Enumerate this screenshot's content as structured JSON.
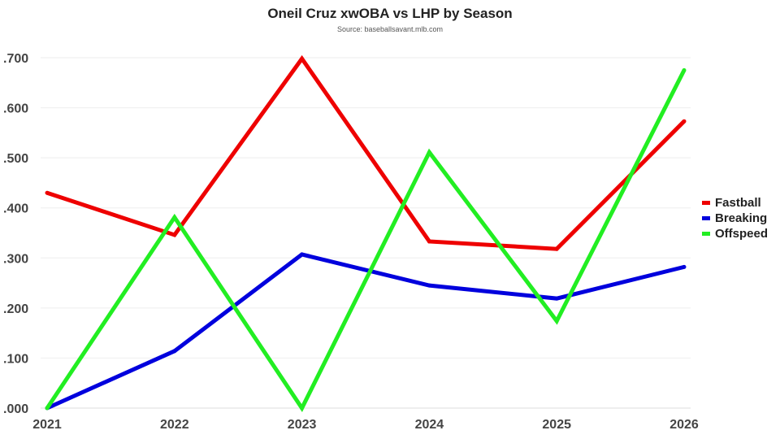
{
  "chart_data": {
    "type": "line",
    "title": "Oneil Cruz xwOBA vs LHP by Season",
    "subtitle": "Source: baseballsavant.mlb.com",
    "x": [
      "2021",
      "2022",
      "2023",
      "2024",
      "2025",
      "2026"
    ],
    "ylim": [
      0,
      0.7
    ],
    "yticks": [
      ".000",
      ".100",
      ".200",
      ".300",
      ".400",
      ".500",
      ".600",
      ".700"
    ],
    "grid": true,
    "legend_position": "right",
    "series": [
      {
        "name": "Fastball",
        "color": "#ee0000",
        "values": [
          0.43,
          0.346,
          0.698,
          0.333,
          0.318,
          0.573
        ]
      },
      {
        "name": "Breaking",
        "color": "#0000dd",
        "values": [
          0.0,
          0.114,
          0.307,
          0.245,
          0.219,
          0.282
        ]
      },
      {
        "name": "Offspeed",
        "color": "#22ee22",
        "values": [
          0.0,
          0.381,
          0.0,
          0.511,
          0.174,
          0.675
        ]
      }
    ]
  }
}
